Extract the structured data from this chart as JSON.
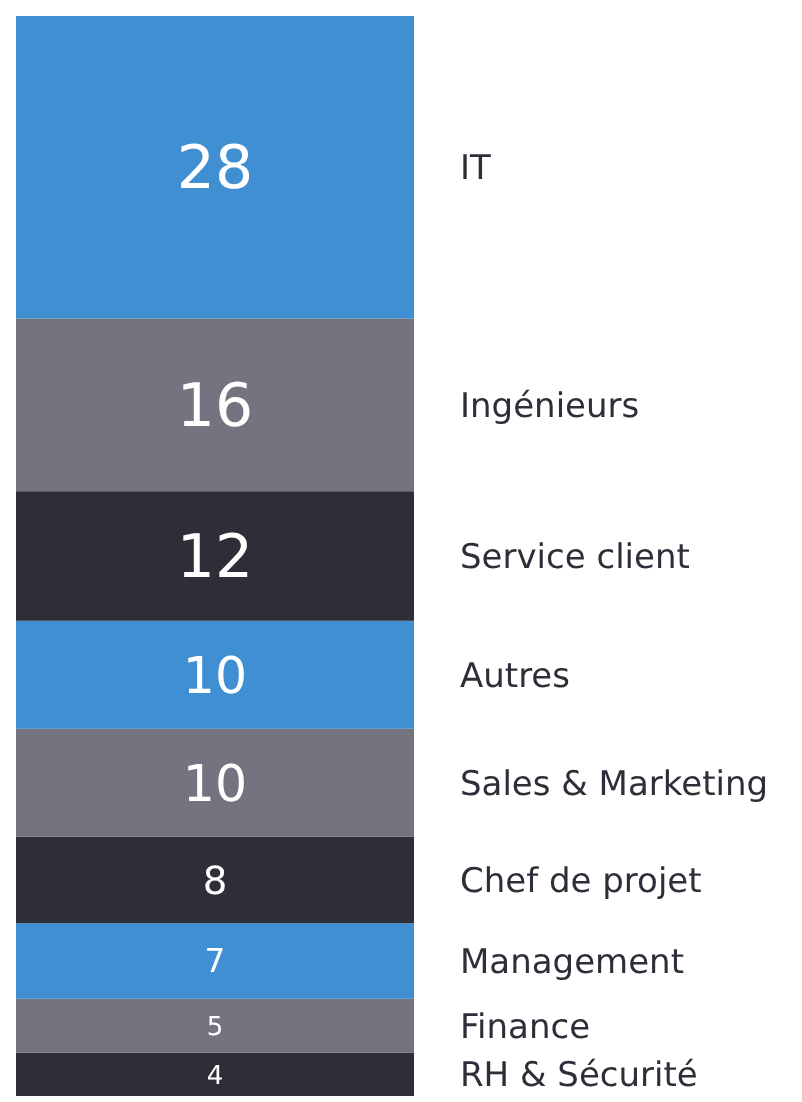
{
  "chart_data": {
    "type": "bar",
    "stacked": true,
    "data_labels": true,
    "legend": false,
    "categories": [
      null
    ],
    "series": [
      {
        "name": "RH & Sécurité",
        "color": "#2e2e38",
        "values": [
          4
        ]
      },
      {
        "name": "Finance",
        "color": "#747480",
        "values": [
          5
        ]
      },
      {
        "name": "Management",
        "color": "#3f8fd2",
        "values": [
          7
        ]
      },
      {
        "name": "Chef de projet",
        "color": "#2e2e38",
        "values": [
          8
        ]
      },
      {
        "name": "Sales & Marketing",
        "color": "#747480",
        "values": [
          10
        ]
      },
      {
        "name": "Autres",
        "color": "#3f8fd2",
        "values": [
          10
        ]
      },
      {
        "name": "Service client",
        "color": "#2e2e38",
        "values": [
          12
        ]
      },
      {
        "name": "Ingénieurs",
        "color": "#747480",
        "values": [
          16
        ]
      },
      {
        "name": "IT",
        "color": "#3f8fd2",
        "values": [
          28
        ]
      }
    ]
  }
}
